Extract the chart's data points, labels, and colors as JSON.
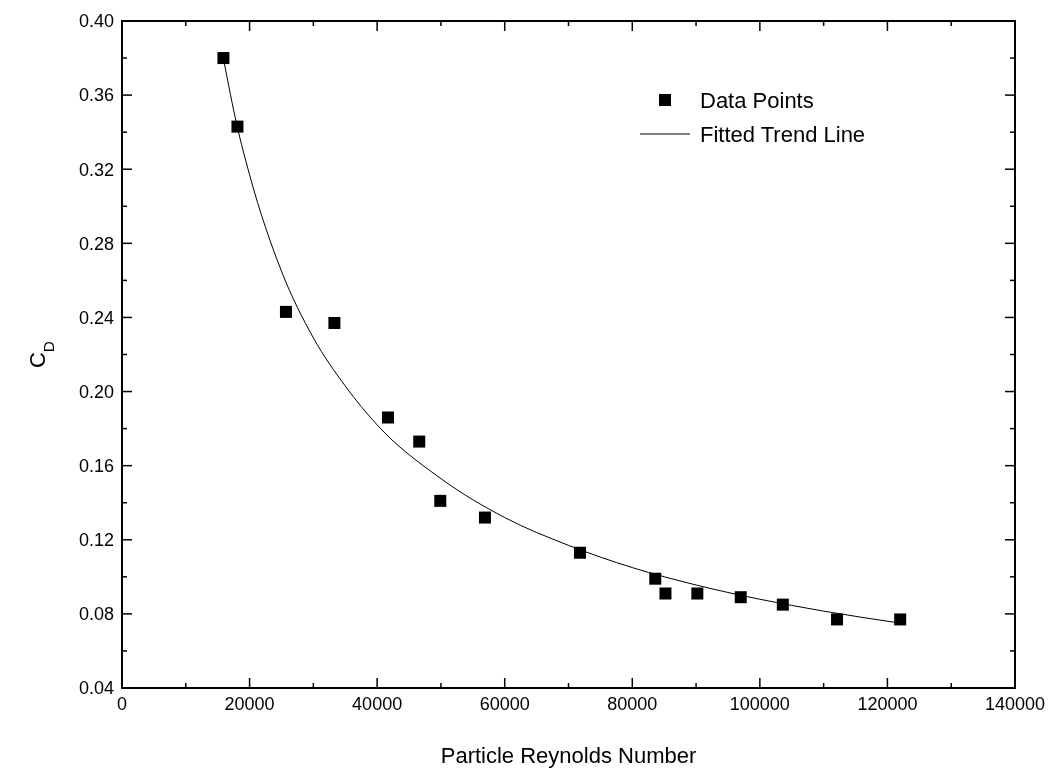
{
  "chart_data": {
    "type": "scatter",
    "xlabel": "Particle Reynolds Number",
    "ylabel": "C$_{D}$",
    "xlim": [
      0,
      140000
    ],
    "xticks": [
      0,
      20000,
      40000,
      60000,
      80000,
      100000,
      120000,
      140000
    ],
    "ylim": [
      0.04,
      0.4
    ],
    "yticks": [
      {
        "value": 0.04,
        "label": "0.04"
      },
      {
        "value": 0.08,
        "label": "0.08"
      },
      {
        "value": 0.12,
        "label": "0.12"
      },
      {
        "value": 0.16,
        "label": "0.16"
      },
      {
        "value": 0.2,
        "label": "0.20"
      },
      {
        "value": 0.24,
        "label": "0.24"
      },
      {
        "value": 0.28,
        "label": "0.28"
      },
      {
        "value": 0.32,
        "label": "0.32"
      },
      {
        "value": 0.36,
        "label": "0.36"
      },
      {
        "value": 0.4,
        "label": "0.40"
      }
    ],
    "grid": false,
    "legend": "top right",
    "series": [
      {
        "name": "Data Points",
        "marker": "square",
        "color": "#000000",
        "x": [
          15900,
          18100,
          25700,
          33300,
          41700,
          46600,
          49900,
          56900,
          71800,
          83600,
          85200,
          90200,
          97000,
          103600,
          112100,
          122000
        ],
        "values": [
          0.38,
          0.343,
          0.243,
          0.237,
          0.186,
          0.173,
          0.141,
          0.132,
          0.113,
          0.099,
          0.091,
          0.091,
          0.089,
          0.085,
          0.077,
          0.077
        ]
      },
      {
        "name": "Fitted Trend Line",
        "type": "line",
        "marker": "none",
        "color": "#000000",
        "line_style": "solid",
        "x": [
          16000,
          18000,
          20000,
          25000,
          30000,
          35000,
          40000,
          50000,
          60000,
          70000,
          80000,
          90000,
          100000,
          110000,
          122000
        ],
        "values": [
          0.378,
          0.344,
          0.317,
          0.265,
          0.229,
          0.203,
          0.182,
          0.153,
          0.132,
          0.117,
          0.105,
          0.0956,
          0.0879,
          0.0815,
          0.075
        ]
      }
    ]
  }
}
